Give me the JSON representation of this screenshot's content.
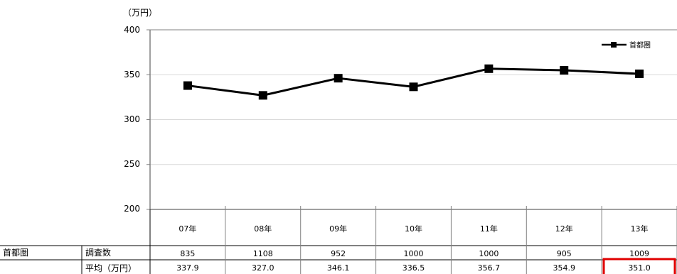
{
  "chart_data": {
    "type": "line",
    "unit_label": "（万円）",
    "categories": [
      "07年",
      "08年",
      "09年",
      "10年",
      "11年",
      "12年",
      "13年"
    ],
    "series": [
      {
        "name": "首都圏",
        "values": [
          337.9,
          327.0,
          346.1,
          336.5,
          356.7,
          354.9,
          351.0
        ]
      }
    ],
    "ylim": [
      200,
      400
    ],
    "yticks": [
      "400",
      "350",
      "300",
      "250",
      "200"
    ],
    "grid": true,
    "legend_position": "top-right",
    "line_color": "#000000"
  },
  "table": {
    "region": "首都圏",
    "rows": [
      {
        "label": "調査数",
        "values": [
          "835",
          "1108",
          "952",
          "1000",
          "1000",
          "905",
          "1009"
        ]
      },
      {
        "label": "平均（万円）",
        "values": [
          "337.9",
          "327.0",
          "346.1",
          "336.5",
          "356.7",
          "354.9",
          "351.0"
        ]
      }
    ],
    "highlight_color": "#e00000"
  }
}
